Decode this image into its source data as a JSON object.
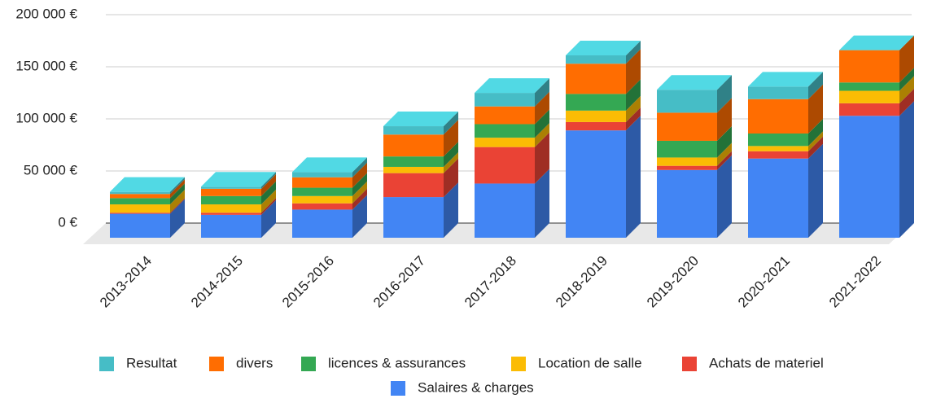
{
  "chart_data": {
    "type": "bar3d_stacked",
    "categories": [
      "2013-2014",
      "2014-2015",
      "2015-2016",
      "2016-2017",
      "2017-2018",
      "2018-2019",
      "2019-2020",
      "2020-2021",
      "2021-2022"
    ],
    "series": [
      {
        "name": "Salaires & charges",
        "color": "#4285f4",
        "values": [
          23000,
          22000,
          27000,
          39000,
          52000,
          103000,
          65000,
          76000,
          117000
        ]
      },
      {
        "name": "Achats de materiel",
        "color": "#ea4335",
        "values": [
          1000,
          2000,
          6000,
          23000,
          35000,
          8000,
          4000,
          7000,
          12000
        ]
      },
      {
        "name": "Location de salle",
        "color": "#fbbc04",
        "values": [
          8000,
          8000,
          7000,
          6000,
          9000,
          11000,
          8000,
          5000,
          12000
        ]
      },
      {
        "name": "licences & assurances",
        "color": "#34a853",
        "values": [
          6000,
          8000,
          8000,
          10000,
          13000,
          16000,
          16000,
          12000,
          8000
        ]
      },
      {
        "name": "divers",
        "color": "#ff6d01",
        "values": [
          4000,
          7000,
          10000,
          21000,
          17000,
          29000,
          27000,
          33000,
          31000
        ]
      },
      {
        "name": "Resultat",
        "color": "#46bdc6",
        "values": [
          2000,
          2000,
          5000,
          8000,
          13000,
          8000,
          22000,
          12000,
          0
        ]
      }
    ],
    "ylim": [
      0,
      200000
    ],
    "yticks": [
      {
        "value": 0,
        "label": "0 €"
      },
      {
        "value": 50000,
        "label": "50 000 €"
      },
      {
        "value": 100000,
        "label": "100 000 €"
      },
      {
        "value": 150000,
        "label": "150 000 €"
      },
      {
        "value": 200000,
        "label": "200 000 €"
      }
    ],
    "grid": true
  }
}
